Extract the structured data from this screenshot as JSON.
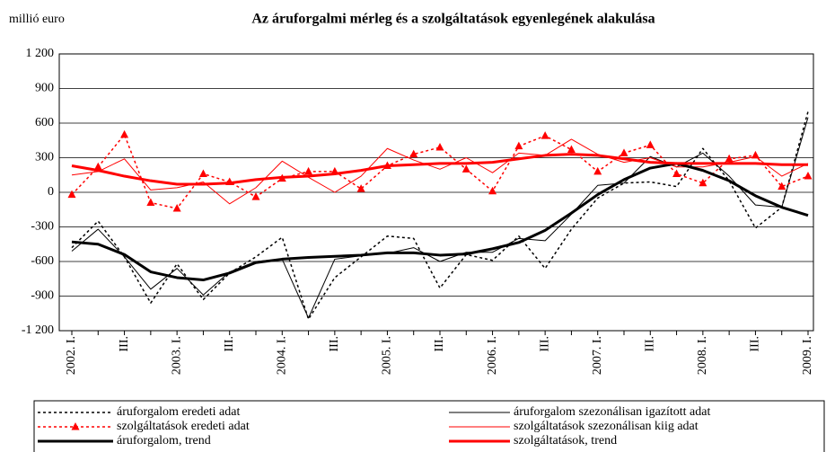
{
  "chart_data": {
    "type": "line",
    "title": "Az áruforgalmi mérleg és a szolgáltatások egyenlegének alakulása",
    "y_label": "millió euro",
    "categories": [
      "2002. I.",
      null,
      "III.",
      null,
      "2003. I.",
      null,
      "III.",
      null,
      "2004. I.",
      null,
      "III.",
      null,
      "2005. I.",
      null,
      "III.",
      null,
      "2006. I.",
      null,
      "III.",
      null,
      "2007. I.",
      null,
      "III.",
      null,
      "2008. I.",
      null,
      "III.",
      null,
      "2009. I."
    ],
    "ylim": [
      -1200,
      1200
    ],
    "yticks": [
      {
        "value": -1200,
        "label": "-1 200"
      },
      -900,
      -600,
      -300,
      0,
      300,
      600,
      900,
      {
        "value": 1200,
        "label": "1 200"
      }
    ],
    "grid": true,
    "series": [
      {
        "name": "áruforgalom eredeti adat",
        "color": "#000000",
        "line_style": "dotted",
        "line_width": 1.5,
        "values": [
          -480,
          -250,
          -560,
          -960,
          -620,
          -930,
          -700,
          -560,
          -390,
          -1100,
          -740,
          -560,
          -380,
          -400,
          -830,
          -540,
          -590,
          -380,
          -660,
          -320,
          -50,
          80,
          90,
          50,
          380,
          100,
          -310,
          -130,
          700
        ]
      },
      {
        "name": "áruforgalom szezonálisan igazított adat",
        "color": "#000000",
        "line_style": "solid",
        "line_width": 1,
        "values": [
          -510,
          -320,
          -560,
          -840,
          -660,
          -890,
          -690,
          -600,
          -580,
          -1090,
          -580,
          -550,
          -530,
          -480,
          -600,
          -520,
          -520,
          -400,
          -420,
          -190,
          60,
          80,
          310,
          220,
          340,
          140,
          -110,
          -130,
          650
        ]
      },
      {
        "name": "szolgáltatások eredeti adat",
        "color": "#ff0000",
        "line_style": "dotted",
        "line_width": 1.5,
        "marker": "triangle",
        "values": [
          -20,
          220,
          500,
          -90,
          -140,
          160,
          90,
          -40,
          120,
          180,
          180,
          30,
          230,
          330,
          390,
          200,
          10,
          400,
          490,
          370,
          180,
          340,
          410,
          160,
          80,
          290,
          320,
          50,
          140
        ]
      },
      {
        "name": "szolgáltatások szezonálisan kiig adat",
        "color": "#ff0000",
        "line_style": "solid",
        "line_width": 1,
        "values": [
          150,
          180,
          290,
          20,
          40,
          90,
          -100,
          40,
          270,
          130,
          0,
          140,
          380,
          280,
          200,
          300,
          170,
          340,
          320,
          460,
          330,
          260,
          300,
          220,
          220,
          260,
          310,
          140,
          250
        ]
      },
      {
        "name": "áruforgalom, trend",
        "color": "#000000",
        "line_style": "solid",
        "line_width": 3,
        "values": [
          -430,
          -450,
          -540,
          -690,
          -740,
          -760,
          -700,
          -610,
          -580,
          -565,
          -555,
          -545,
          -525,
          -525,
          -545,
          -535,
          -490,
          -435,
          -330,
          -180,
          -20,
          110,
          210,
          250,
          190,
          100,
          -30,
          -130,
          -200
        ]
      },
      {
        "name": "szolgáltatások, trend",
        "color": "#ff0000",
        "line_style": "solid",
        "line_width": 3,
        "values": [
          230,
          190,
          140,
          100,
          70,
          70,
          80,
          110,
          130,
          140,
          160,
          190,
          230,
          240,
          250,
          250,
          260,
          290,
          320,
          330,
          320,
          290,
          260,
          250,
          250,
          250,
          250,
          240,
          240
        ]
      }
    ]
  }
}
